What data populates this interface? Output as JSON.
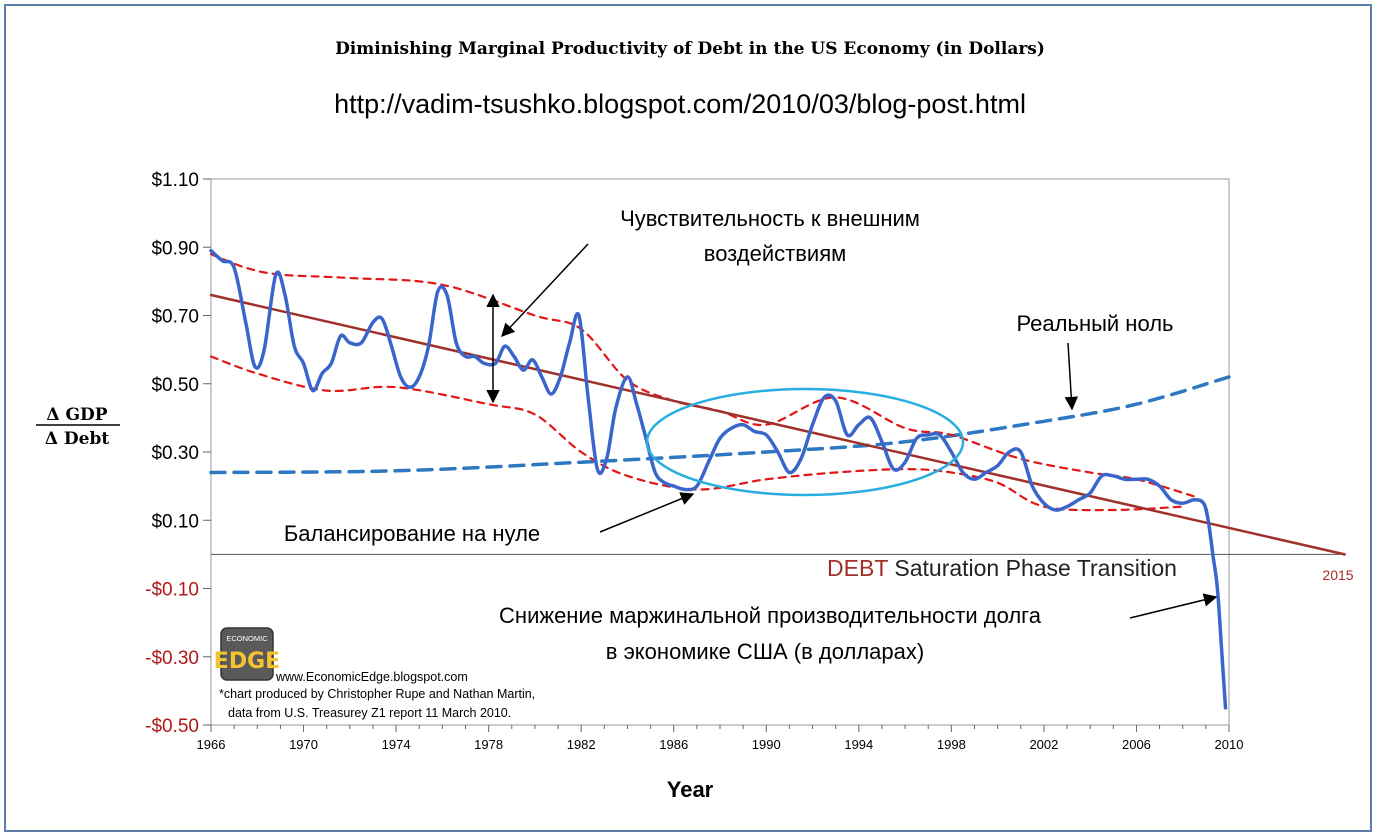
{
  "chart_data": {
    "type": "line",
    "title": "Diminishing Marginal Productivity of Debt in the US Economy  (in Dollars)",
    "url": "http://vadim-tsushko.blogspot.com/2010/03/blog-post.html",
    "xlabel": "Year",
    "ylabel_top": "Δ GDP",
    "ylabel_bottom": "Δ Debt",
    "xlim": [
      1966,
      2010
    ],
    "ylim": [
      -0.5,
      1.1
    ],
    "yticks": [
      1.1,
      0.9,
      0.7,
      0.5,
      0.3,
      0.1,
      -0.1,
      -0.3,
      -0.5
    ],
    "ytick_labels": [
      "$1.10",
      "$0.90",
      "$0.70",
      "$0.50",
      "$0.30",
      "$0.10",
      "-$0.10",
      "-$0.30",
      "-$0.50"
    ],
    "xticks": [
      1966,
      1970,
      1974,
      1978,
      1982,
      1986,
      1990,
      1994,
      1998,
      2002,
      2006,
      2010
    ],
    "xtick_labels": [
      "1966",
      "1970",
      "1974",
      "1978",
      "1982",
      "1986",
      "1990",
      "1994",
      "1998",
      "2002",
      "2006",
      "2010"
    ],
    "extra_x_label": "2015",
    "series": [
      {
        "name": "Δ GDP / Δ Debt",
        "color": "#3a66cc",
        "x": [
          1966.0,
          1966.5,
          1967.0,
          1967.5,
          1967.9,
          1968.3,
          1968.8,
          1969.2,
          1969.6,
          1970.0,
          1970.4,
          1970.8,
          1971.2,
          1971.6,
          1972.0,
          1972.5,
          1973.0,
          1973.4,
          1973.8,
          1974.2,
          1974.6,
          1975.0,
          1975.4,
          1975.8,
          1976.2,
          1976.6,
          1977.0,
          1977.4,
          1977.8,
          1978.3,
          1978.7,
          1979.1,
          1979.5,
          1979.9,
          1980.3,
          1980.7,
          1981.1,
          1981.5,
          1981.9,
          1982.3,
          1982.7,
          1983.1,
          1983.5,
          1984.0,
          1984.4,
          1984.8,
          1985.2,
          1985.6,
          1986.0,
          1986.5,
          1987.0,
          1987.5,
          1988.0,
          1988.5,
          1989.0,
          1989.5,
          1990.0,
          1990.5,
          1991.0,
          1991.5,
          1992.0,
          1992.5,
          1993.0,
          1993.5,
          1994.0,
          1994.5,
          1995.0,
          1995.5,
          1996.0,
          1996.5,
          1997.0,
          1997.5,
          1998.0,
          1998.5,
          1999.0,
          1999.5,
          2000.0,
          2000.5,
          2001.0,
          2001.5,
          2002.0,
          2002.5,
          2003.0,
          2003.5,
          2004.0,
          2004.5,
          2005.0,
          2005.5,
          2006.0,
          2006.5,
          2007.0,
          2007.5,
          2008.0,
          2008.5,
          2008.9,
          2009.1,
          2009.3,
          2009.5,
          2009.7,
          2009.85
        ],
        "values": [
          0.89,
          0.86,
          0.84,
          0.68,
          0.55,
          0.6,
          0.82,
          0.76,
          0.61,
          0.56,
          0.48,
          0.53,
          0.56,
          0.64,
          0.62,
          0.62,
          0.68,
          0.69,
          0.61,
          0.52,
          0.49,
          0.52,
          0.61,
          0.77,
          0.76,
          0.62,
          0.58,
          0.58,
          0.56,
          0.56,
          0.61,
          0.58,
          0.54,
          0.57,
          0.52,
          0.47,
          0.52,
          0.62,
          0.7,
          0.46,
          0.25,
          0.28,
          0.43,
          0.52,
          0.44,
          0.34,
          0.24,
          0.21,
          0.2,
          0.19,
          0.2,
          0.27,
          0.34,
          0.37,
          0.38,
          0.36,
          0.35,
          0.3,
          0.24,
          0.28,
          0.38,
          0.46,
          0.45,
          0.35,
          0.38,
          0.4,
          0.33,
          0.25,
          0.27,
          0.34,
          0.35,
          0.35,
          0.3,
          0.24,
          0.22,
          0.24,
          0.26,
          0.3,
          0.3,
          0.2,
          0.15,
          0.13,
          0.14,
          0.16,
          0.18,
          0.23,
          0.23,
          0.22,
          0.22,
          0.22,
          0.2,
          0.16,
          0.15,
          0.16,
          0.15,
          0.1,
          0.0,
          -0.1,
          -0.3,
          -0.45
        ]
      },
      {
        "name": "Trend",
        "color": "#a0302a",
        "x": [
          1966,
          2015
        ],
        "values": [
          0.76,
          0.0
        ]
      },
      {
        "name": "Upper envelope",
        "color": "#e01818",
        "x": [
          1966,
          1967.5,
          1969,
          1972,
          1976,
          1980,
          1982,
          1984,
          1986,
          1988,
          1990,
          1993,
          1996,
          1998,
          2001,
          2004,
          2006,
          2008.5
        ],
        "values": [
          0.88,
          0.84,
          0.82,
          0.81,
          0.79,
          0.7,
          0.66,
          0.51,
          0.45,
          0.42,
          0.38,
          0.46,
          0.37,
          0.35,
          0.28,
          0.24,
          0.22,
          0.17
        ]
      },
      {
        "name": "Lower envelope",
        "color": "#e01818",
        "x": [
          1966,
          1968,
          1971,
          1974,
          1978,
          1980,
          1982,
          1984,
          1987,
          1990,
          1993,
          1996,
          1998,
          2000,
          2002,
          2005,
          2008
        ],
        "values": [
          0.58,
          0.53,
          0.48,
          0.49,
          0.44,
          0.41,
          0.3,
          0.23,
          0.19,
          0.22,
          0.24,
          0.25,
          0.24,
          0.21,
          0.14,
          0.13,
          0.14
        ]
      },
      {
        "name": "Реальный ноль",
        "color": "#2e78c2",
        "x": [
          1966,
          1974,
          1982,
          1990,
          1996,
          2002,
          2006,
          2010
        ],
        "values": [
          0.24,
          0.245,
          0.27,
          0.3,
          0.33,
          0.39,
          0.44,
          0.52
        ]
      }
    ],
    "annotations": {
      "sensitivity": [
        "Чувствительность к внешним",
        "воздействиям"
      ],
      "real_zero": "Реальный ноль",
      "balancing": "Балансирование на нуле",
      "decline": [
        "Снижение маржинальной производительности долга",
        "в экономике США (в долларах)"
      ],
      "phase_transition_word": "DEBT",
      "phase_transition_rest": " Saturation Phase Transition"
    },
    "credits": {
      "logo_top": "ECONOMIC",
      "logo_main": "EDGE",
      "website": "www.EconomicEdge.blogspot.com",
      "line1": "*chart produced by Christopher Rupe and Nathan Martin,",
      "line2": "data from U.S. Treasurey Z1 report 11 March 2010."
    },
    "colors": {
      "positive_tick": "#000000",
      "negative_tick": "#b01818",
      "highlight_ellipse": "#2aaee0"
    }
  }
}
